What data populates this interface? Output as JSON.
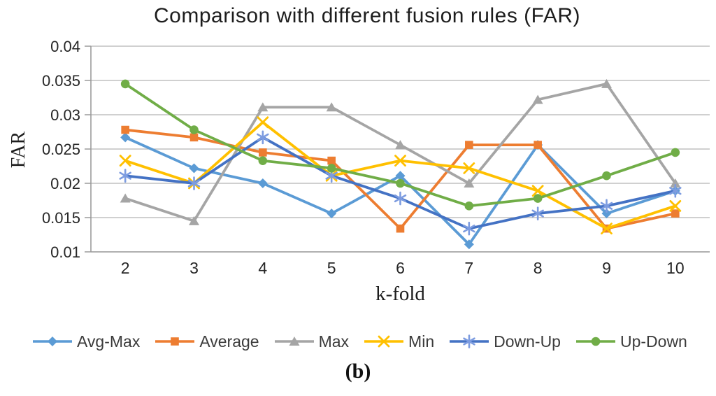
{
  "chart_data": {
    "type": "line",
    "title": "Comparison with different fusion rules (FAR)",
    "xlabel": "k-fold",
    "ylabel": "FAR",
    "caption": "(b)",
    "x": [
      2,
      3,
      4,
      5,
      6,
      7,
      8,
      9,
      10
    ],
    "xtick_labels": [
      "2",
      "3",
      "4",
      "5",
      "6",
      "7",
      "8",
      "9",
      "10"
    ],
    "ylim": [
      0.01,
      0.04
    ],
    "ytick_labels": [
      "0.04",
      "0.035",
      "0.03",
      "0.025",
      "0.02",
      "0.015",
      "0.01"
    ],
    "grid": true,
    "legend_position": "bottom",
    "colors": {
      "gridline": "#b3b3b3",
      "axis": "#9b9b9b",
      "tick_text": "#262626"
    },
    "series": [
      {
        "name": "Avg-Max",
        "color": "#5B9BD5",
        "marker": "diamond",
        "values": [
          0.0267,
          0.0222,
          0.02,
          0.0156,
          0.0211,
          0.0111,
          0.0256,
          0.0156,
          0.0189
        ]
      },
      {
        "name": "Average",
        "color": "#ED7D31",
        "marker": "square",
        "values": [
          0.0278,
          0.0267,
          0.0245,
          0.0233,
          0.0134,
          0.0256,
          0.0256,
          0.0134,
          0.0156
        ]
      },
      {
        "name": "Max",
        "color": "#A5A5A5",
        "marker": "triangle",
        "values": [
          0.0178,
          0.0145,
          0.0311,
          0.0311,
          0.0256,
          0.02,
          0.0322,
          0.0345,
          0.02
        ]
      },
      {
        "name": "Min",
        "color": "#FFC000",
        "marker": "x",
        "values": [
          0.0233,
          0.02,
          0.0289,
          0.0211,
          0.0233,
          0.0222,
          0.0189,
          0.0134,
          0.0167
        ]
      },
      {
        "name": "Down-Up",
        "color": "#4472C4",
        "marker": "asterisk",
        "marker_color": "#7D9CE0",
        "values": [
          0.0211,
          0.02,
          0.0267,
          0.0211,
          0.0178,
          0.0134,
          0.0156,
          0.0167,
          0.0189
        ]
      },
      {
        "name": "Up-Down",
        "color": "#70AD47",
        "marker": "circle",
        "values": [
          0.0345,
          0.0278,
          0.0233,
          0.0222,
          0.02,
          0.0167,
          0.0178,
          0.0211,
          0.0245
        ]
      }
    ]
  }
}
